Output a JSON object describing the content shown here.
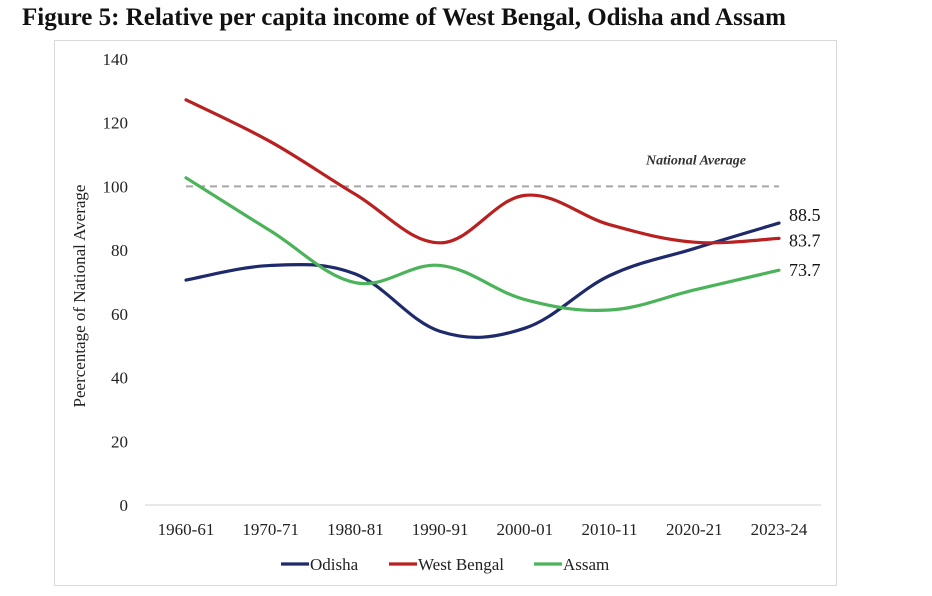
{
  "figure": {
    "title": "Figure 5: Relative per capita income of West Bengal, Odisha and Assam"
  },
  "chart_data": {
    "type": "line",
    "title": "Figure 5: Relative per capita income of West Bengal, Odisha and Assam",
    "xlabel": "",
    "ylabel": "Peercentage of National Average",
    "ylim": [
      0,
      140
    ],
    "yticks": [
      0,
      20,
      40,
      60,
      80,
      100,
      120,
      140
    ],
    "grid": false,
    "smooth": true,
    "categories": [
      "1960-61",
      "1970-71",
      "1980-81",
      "1990-91",
      "2000-01",
      "2010-11",
      "2020-21",
      "2023-24"
    ],
    "series": [
      {
        "name": "Odisha",
        "color": "#1f2a6b",
        "values": [
          70.6,
          75.2,
          72.5,
          54.5,
          55.5,
          72.0,
          80.5,
          88.5
        ],
        "end_label": "88.5"
      },
      {
        "name": "West Bengal",
        "color": "#b8211f",
        "values": [
          127.2,
          114.0,
          97.5,
          82.3,
          97.2,
          88.0,
          82.5,
          83.7
        ],
        "end_label": "83.7"
      },
      {
        "name": "Assam",
        "color": "#4bb35a",
        "values": [
          102.7,
          86.0,
          69.8,
          75.2,
          64.5,
          61.2,
          67.5,
          73.7
        ],
        "end_label": "73.7"
      }
    ],
    "reference_line": {
      "label": "National Average",
      "value": 100,
      "color": "#a6a6a6",
      "style": "dashed"
    },
    "legend": {
      "position": "bottom",
      "entries": [
        "Odisha",
        "West Bengal",
        "Assam"
      ]
    }
  }
}
